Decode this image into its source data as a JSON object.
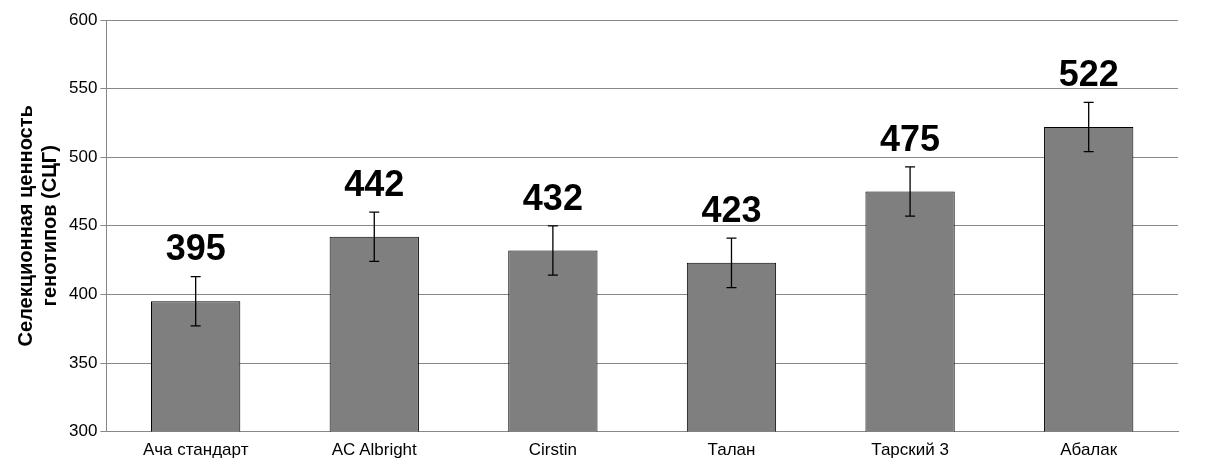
{
  "chart_data": {
    "type": "bar",
    "ylabel": "Селекционная ценность генотипов (СЦГ)",
    "categories": [
      "Ача стандарт",
      "AC Albright",
      "Cirstin",
      "Талан",
      "Тарский 3",
      "Абалак"
    ],
    "values": [
      395,
      442,
      432,
      423,
      475,
      522
    ],
    "errors": [
      18,
      18,
      18,
      18,
      18,
      18
    ],
    "color": "#7f7f7f",
    "ylim": [
      300,
      600
    ],
    "yticks": [
      300,
      350,
      400,
      450,
      500,
      550,
      600
    ],
    "grid": "y",
    "data_labels": true
  }
}
